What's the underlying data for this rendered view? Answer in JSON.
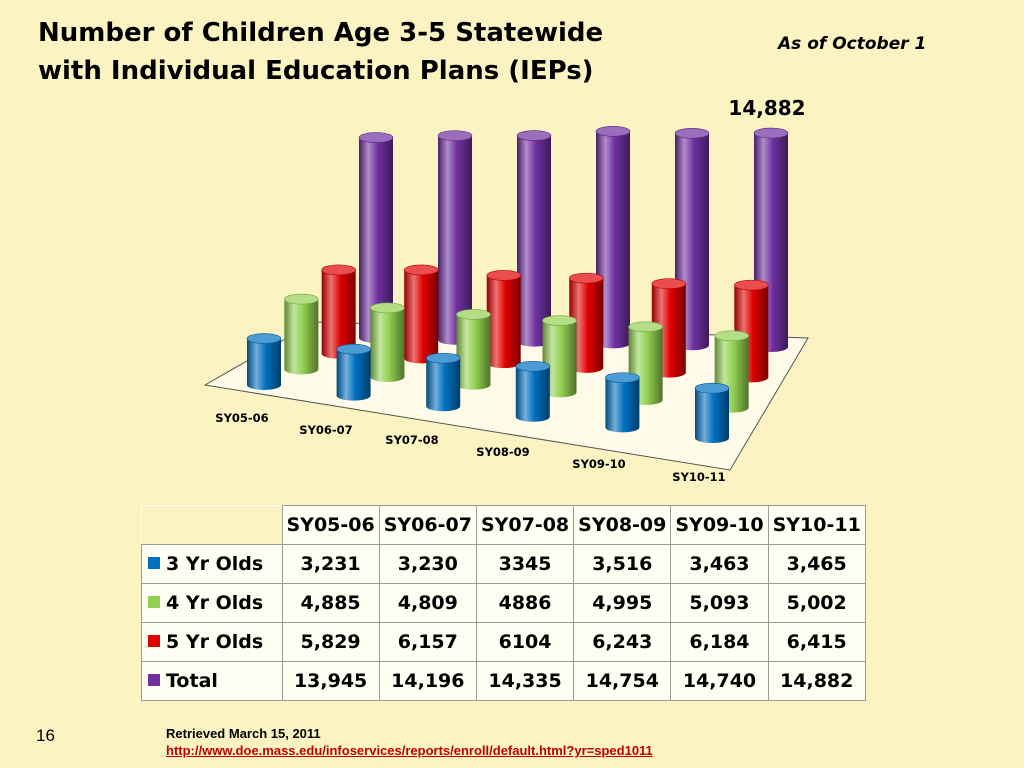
{
  "title_lines": [
    "Number of Children Age 3-5 Statewide",
    "with Individual Education Plans (IEPs)"
  ],
  "as_of": "As of October 1",
  "colors": {
    "3yr": "#0070c0",
    "4yr": "#92d050",
    "5yr": "#e00000",
    "total": "#7030a0"
  },
  "chart_data": {
    "type": "bar",
    "subtype": "3d-cylinder",
    "categories": [
      "SY05-06",
      "SY06-07",
      "SY07-08",
      "SY08-09",
      "SY09-10",
      "SY10-11"
    ],
    "series": [
      {
        "name": "3 Yr Olds",
        "values": [
          3231,
          3230,
          3345,
          3516,
          3463,
          3465
        ]
      },
      {
        "name": "4 Yr Olds",
        "values": [
          4885,
          4809,
          4886,
          4995,
          5093,
          5002
        ]
      },
      {
        "name": "5 Yr Olds",
        "values": [
          5829,
          6157,
          6104,
          6243,
          6184,
          6415
        ]
      },
      {
        "name": "Total",
        "values": [
          13945,
          14196,
          14335,
          14754,
          14740,
          14882
        ]
      }
    ],
    "annotation": "14,882"
  },
  "table": {
    "headers": [
      "SY05-06",
      "SY06-07",
      "SY07-08",
      "SY08-09",
      "SY09-10",
      "SY10-11"
    ],
    "rows": [
      {
        "label": "3 Yr Olds",
        "color_key": "3yr",
        "values": [
          "3,231",
          "3,230",
          "3345",
          "3,516",
          "3,463",
          "3,465"
        ]
      },
      {
        "label": "4 Yr Olds",
        "color_key": "4yr",
        "values": [
          "4,885",
          "4,809",
          "4886",
          "4,995",
          "5,093",
          "5,002"
        ]
      },
      {
        "label": "5 Yr Olds",
        "color_key": "5yr",
        "values": [
          "5,829",
          "6,157",
          "6104",
          "6,243",
          "6,184",
          "6,415"
        ]
      },
      {
        "label": "Total",
        "color_key": "total",
        "values": [
          "13,945",
          "14,196",
          "14,335",
          "14,754",
          "14,740",
          "14,882"
        ]
      }
    ]
  },
  "page_number": "16",
  "source": {
    "retrieved": "Retrieved March 15, 2011",
    "url": "http://www.doe.mass.edu/infoservices/reports/enroll/default.html?yr=sped1011"
  }
}
